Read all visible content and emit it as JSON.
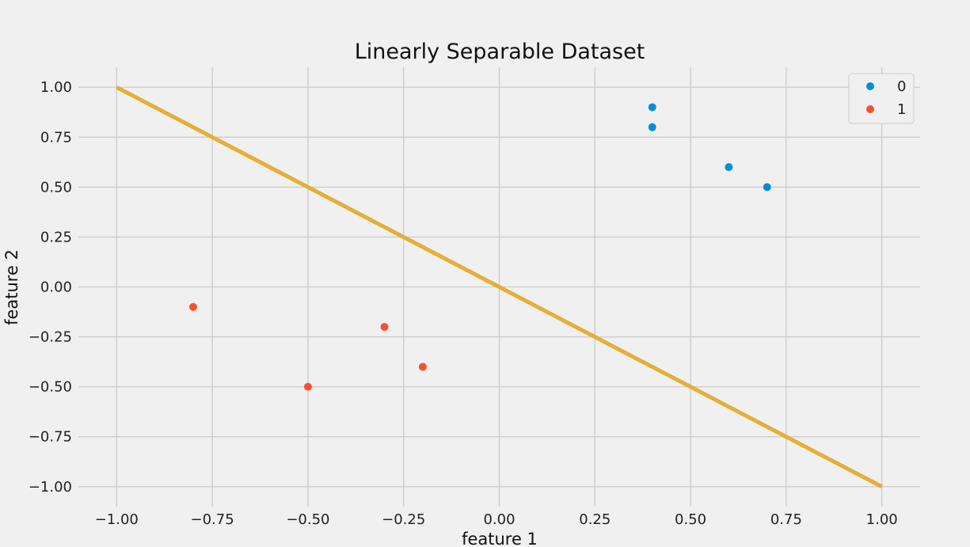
{
  "chart_data": {
    "type": "scatter",
    "title": "Linearly Separable Dataset",
    "xlabel": "feature 1",
    "ylabel": "feature 2",
    "xlim": [
      -1.1,
      1.1
    ],
    "ylim": [
      -1.1,
      1.1
    ],
    "x_ticks": [
      -1.0,
      -0.75,
      -0.5,
      -0.25,
      0.0,
      0.25,
      0.5,
      0.75,
      1.0
    ],
    "y_ticks": [
      -1.0,
      -0.75,
      -0.5,
      -0.25,
      0.0,
      0.25,
      0.5,
      0.75,
      1.0
    ],
    "x_tick_labels": [
      "−1.00",
      "−0.75",
      "−0.50",
      "−0.25",
      "0.00",
      "0.25",
      "0.50",
      "0.75",
      "1.00"
    ],
    "y_tick_labels": [
      "−1.00",
      "−0.75",
      "−0.50",
      "−0.25",
      "0.00",
      "0.25",
      "0.50",
      "0.75",
      "1.00"
    ],
    "grid": true,
    "legend_position": "top-right",
    "series": [
      {
        "name": "0",
        "color": "#008fd5",
        "points": [
          {
            "x": 0.4,
            "y": 0.9
          },
          {
            "x": 0.4,
            "y": 0.8
          },
          {
            "x": 0.6,
            "y": 0.6
          },
          {
            "x": 0.7,
            "y": 0.5
          }
        ]
      },
      {
        "name": "1",
        "color": "#fc4f30",
        "points": [
          {
            "x": -0.8,
            "y": -0.1
          },
          {
            "x": -0.3,
            "y": -0.2
          },
          {
            "x": -0.2,
            "y": -0.4
          },
          {
            "x": -0.5,
            "y": -0.5
          }
        ]
      }
    ],
    "line": {
      "color": "#e5ae38",
      "points": [
        {
          "x": -1.0,
          "y": 1.0
        },
        {
          "x": 1.0,
          "y": -1.0
        }
      ]
    }
  }
}
